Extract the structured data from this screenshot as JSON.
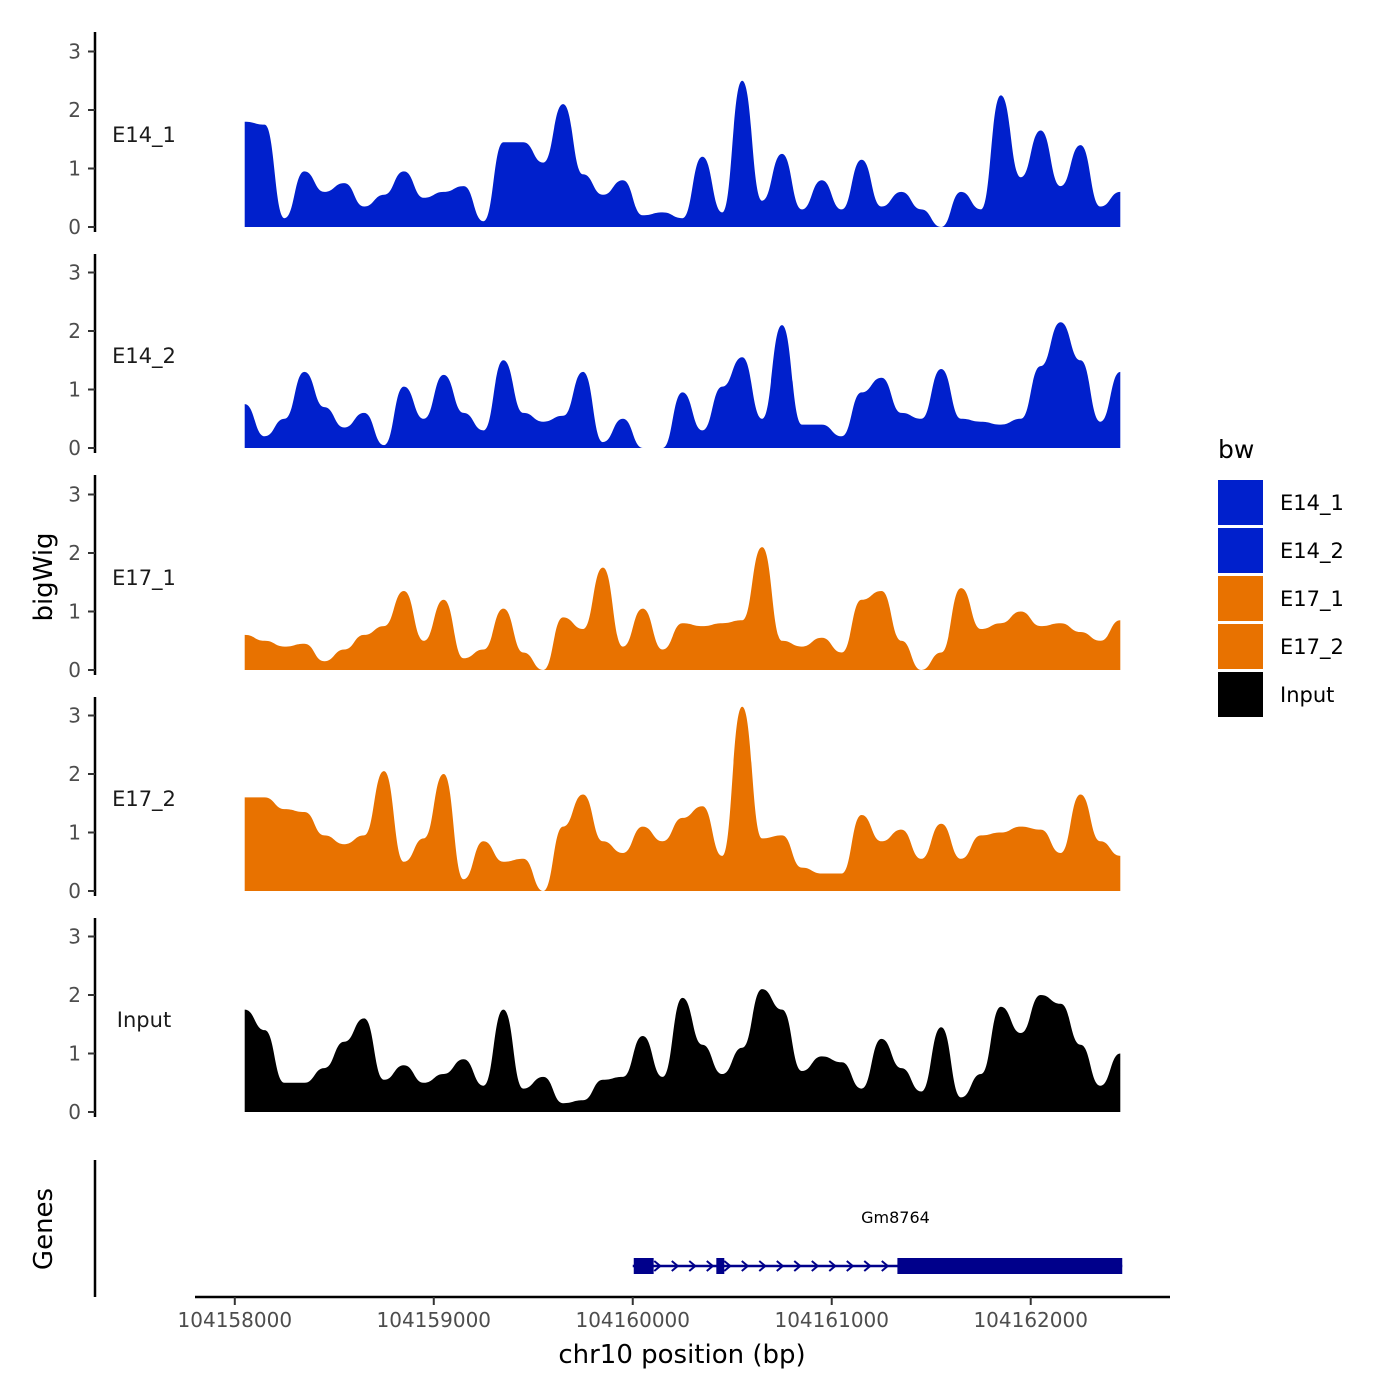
{
  "chart_data": {
    "type": "area",
    "title": "",
    "xlabel": "chr10 position (bp)",
    "ylabel": "bigWig",
    "genes_label": "Genes",
    "xlim": [
      104157800,
      104162700
    ],
    "ylim": [
      0,
      3.3
    ],
    "x_ticks": [
      104158000,
      104159000,
      104160000,
      104161000,
      104162000
    ],
    "x_tick_labels": [
      "104158000",
      "104159000",
      "104160000",
      "104161000",
      "104162000"
    ],
    "y_ticks": [
      0,
      1,
      2,
      3
    ],
    "y_tick_labels": [
      "0",
      "1",
      "2",
      "3"
    ],
    "legend": {
      "title": "bw",
      "position": "right",
      "entries": [
        {
          "label": "E14_1",
          "color": "#0020CC"
        },
        {
          "label": "E14_2",
          "color": "#0020CC"
        },
        {
          "label": "E17_1",
          "color": "#E87200"
        },
        {
          "label": "E17_2",
          "color": "#E87200"
        },
        {
          "label": "Input",
          "color": "#000000"
        }
      ]
    },
    "x": [
      104158050,
      104158150,
      104158250,
      104158350,
      104158450,
      104158550,
      104158650,
      104158750,
      104158850,
      104158950,
      104159050,
      104159150,
      104159250,
      104159350,
      104159450,
      104159550,
      104159650,
      104159750,
      104159850,
      104159950,
      104160050,
      104160150,
      104160250,
      104160350,
      104160450,
      104160550,
      104160650,
      104160750,
      104160850,
      104160950,
      104161050,
      104161150,
      104161250,
      104161350,
      104161450,
      104161550,
      104161650,
      104161750,
      104161850,
      104161950,
      104162050,
      104162150,
      104162250,
      104162350,
      104162450
    ],
    "series": [
      {
        "name": "E14_1",
        "color": "#0020CC",
        "values": [
          1.8,
          1.75,
          0.15,
          0.95,
          0.6,
          0.75,
          0.35,
          0.55,
          0.95,
          0.5,
          0.6,
          0.7,
          0.1,
          1.45,
          1.45,
          1.1,
          2.1,
          0.9,
          0.55,
          0.8,
          0.2,
          0.25,
          0.15,
          1.2,
          0.25,
          2.5,
          0.45,
          1.25,
          0.3,
          0.8,
          0.3,
          1.15,
          0.35,
          0.6,
          0.3,
          0.0,
          0.6,
          0.3,
          2.25,
          0.85,
          1.65,
          0.7,
          1.4,
          0.35,
          0.6
        ]
      },
      {
        "name": "E14_2",
        "color": "#0020CC",
        "values": [
          0.75,
          0.2,
          0.5,
          1.3,
          0.7,
          0.35,
          0.6,
          0.05,
          1.05,
          0.5,
          1.25,
          0.6,
          0.3,
          1.5,
          0.6,
          0.45,
          0.55,
          1.3,
          0.1,
          0.5,
          0.0,
          0.0,
          0.95,
          0.3,
          1.05,
          1.55,
          0.5,
          2.1,
          0.4,
          0.4,
          0.2,
          0.95,
          1.2,
          0.6,
          0.5,
          1.35,
          0.5,
          0.45,
          0.4,
          0.5,
          1.4,
          2.15,
          1.5,
          0.45,
          1.3
        ]
      },
      {
        "name": "E17_1",
        "color": "#E87200",
        "values": [
          0.6,
          0.5,
          0.4,
          0.45,
          0.15,
          0.35,
          0.6,
          0.75,
          1.35,
          0.5,
          1.2,
          0.2,
          0.35,
          1.05,
          0.3,
          0.0,
          0.9,
          0.7,
          1.75,
          0.4,
          1.05,
          0.35,
          0.8,
          0.75,
          0.8,
          0.85,
          2.1,
          0.5,
          0.4,
          0.55,
          0.3,
          1.2,
          1.35,
          0.5,
          0.0,
          0.3,
          1.4,
          0.7,
          0.8,
          1.0,
          0.75,
          0.8,
          0.65,
          0.5,
          0.85
        ]
      },
      {
        "name": "E17_2",
        "color": "#E87200",
        "values": [
          1.6,
          1.6,
          1.4,
          1.35,
          0.95,
          0.8,
          0.95,
          2.05,
          0.5,
          0.9,
          2.0,
          0.2,
          0.85,
          0.5,
          0.55,
          0.0,
          1.1,
          1.65,
          0.85,
          0.65,
          1.1,
          0.85,
          1.25,
          1.45,
          0.6,
          3.15,
          0.9,
          0.95,
          0.4,
          0.3,
          0.3,
          1.3,
          0.85,
          1.05,
          0.55,
          1.15,
          0.55,
          0.95,
          1.0,
          1.1,
          1.05,
          0.65,
          1.65,
          0.85,
          0.6
        ]
      },
      {
        "name": "Input",
        "color": "#000000",
        "values": [
          1.75,
          1.4,
          0.5,
          0.5,
          0.75,
          1.2,
          1.6,
          0.55,
          0.8,
          0.5,
          0.65,
          0.9,
          0.45,
          1.75,
          0.4,
          0.6,
          0.15,
          0.2,
          0.55,
          0.6,
          1.3,
          0.6,
          1.95,
          1.15,
          0.65,
          1.1,
          2.1,
          1.75,
          0.7,
          0.95,
          0.85,
          0.4,
          1.25,
          0.75,
          0.35,
          1.45,
          0.25,
          0.65,
          1.8,
          1.35,
          2.0,
          1.85,
          1.15,
          0.45,
          1.0
        ]
      }
    ],
    "genes": [
      {
        "name": "Gm8764",
        "start": 104160000,
        "end": 104162460,
        "strand": "+",
        "exons": [
          [
            104160005,
            104160105
          ],
          [
            104160420,
            104160460
          ],
          [
            104161330,
            104162460
          ]
        ],
        "color": "#00008B"
      }
    ]
  }
}
